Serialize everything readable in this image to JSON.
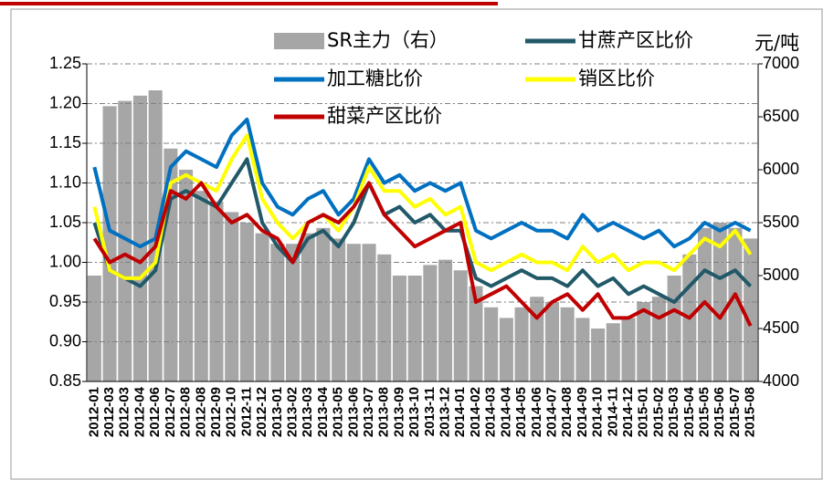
{
  "chart_data": {
    "type": "line",
    "y2_unit_label": "元/吨",
    "categories": [
      "2012-01",
      "2012-03",
      "2012-03",
      "2012-04",
      "2012-06",
      "2012-07",
      "2012-08",
      "2012-08",
      "2012-09",
      "2012-10",
      "2012-11",
      "2012-12",
      "2013-01",
      "2013-02",
      "2013-03",
      "2013-04",
      "2013-05",
      "2013-06",
      "2013-07",
      "2013-08",
      "2013-09",
      "2013-10",
      "2013-11",
      "2013-12",
      "2014-01",
      "2014-02",
      "2014-03",
      "2014-04",
      "2014-05",
      "2014-06",
      "2014-07",
      "2014-08",
      "2014-09",
      "2014-10",
      "2014-11",
      "2014-12",
      "2015-01",
      "2015-02",
      "2015-03",
      "2015-04",
      "2015-05",
      "2015-06",
      "2015-07",
      "2015-08"
    ],
    "series": [
      {
        "name": "SR主力（右）",
        "color": "#a6a6a6",
        "type": "bar",
        "axis": "y2",
        "values": [
          5000,
          6600,
          6650,
          6700,
          6750,
          6200,
          6000,
          5800,
          5700,
          5600,
          5500,
          5400,
          5300,
          5300,
          5400,
          5450,
          5350,
          5300,
          5300,
          5200,
          5000,
          5000,
          5100,
          5150,
          5050,
          4900,
          4700,
          4600,
          4700,
          4800,
          4750,
          4700,
          4600,
          4500,
          4550,
          4600,
          4750,
          4800,
          5000,
          5200,
          5450,
          5500,
          5450,
          5350
        ]
      },
      {
        "name": "甘蔗产区比价",
        "color": "#215968",
        "type": "line",
        "values": [
          1.05,
          0.99,
          0.98,
          0.97,
          0.99,
          1.08,
          1.09,
          1.08,
          1.07,
          1.1,
          1.13,
          1.05,
          1.02,
          1.0,
          1.03,
          1.04,
          1.02,
          1.05,
          1.1,
          1.06,
          1.07,
          1.05,
          1.06,
          1.04,
          1.04,
          0.98,
          0.97,
          0.98,
          0.99,
          0.98,
          0.98,
          0.97,
          0.99,
          0.97,
          0.98,
          0.96,
          0.97,
          0.96,
          0.95,
          0.97,
          0.99,
          0.98,
          0.99,
          0.97
        ]
      },
      {
        "name": "加工糖比价",
        "color": "#0070c0",
        "type": "line",
        "values": [
          1.12,
          1.04,
          1.03,
          1.02,
          1.03,
          1.12,
          1.14,
          1.13,
          1.12,
          1.16,
          1.18,
          1.1,
          1.07,
          1.06,
          1.08,
          1.09,
          1.06,
          1.08,
          1.13,
          1.1,
          1.11,
          1.09,
          1.1,
          1.09,
          1.1,
          1.04,
          1.03,
          1.04,
          1.05,
          1.04,
          1.04,
          1.03,
          1.06,
          1.04,
          1.05,
          1.04,
          1.03,
          1.04,
          1.02,
          1.03,
          1.05,
          1.04,
          1.05,
          1.04
        ]
      },
      {
        "name": "销区比价",
        "color": "#ffff00",
        "type": "line",
        "values": [
          1.07,
          0.99,
          0.98,
          0.98,
          1.0,
          1.1,
          1.11,
          1.1,
          1.09,
          1.13,
          1.16,
          1.08,
          1.05,
          1.03,
          1.05,
          1.06,
          1.04,
          1.07,
          1.12,
          1.09,
          1.09,
          1.07,
          1.08,
          1.06,
          1.07,
          1.0,
          0.99,
          1.0,
          1.01,
          1.0,
          1.0,
          0.99,
          1.02,
          1.0,
          1.01,
          0.99,
          1.0,
          1.0,
          0.99,
          1.01,
          1.03,
          1.02,
          1.04,
          1.01
        ]
      },
      {
        "name": "甜菜产区比价",
        "color": "#c00000",
        "type": "line",
        "values": [
          1.03,
          1.0,
          1.01,
          1.0,
          1.02,
          1.09,
          1.08,
          1.1,
          1.07,
          1.05,
          1.06,
          1.04,
          1.03,
          1.0,
          1.05,
          1.06,
          1.05,
          1.07,
          1.1,
          1.06,
          1.04,
          1.02,
          1.03,
          1.04,
          1.05,
          0.95,
          0.96,
          0.97,
          0.95,
          0.93,
          0.95,
          0.96,
          0.94,
          0.96,
          0.93,
          0.93,
          0.94,
          0.93,
          0.94,
          0.93,
          0.95,
          0.93,
          0.96,
          0.92
        ]
      }
    ],
    "ylim": [
      0.85,
      1.25
    ],
    "yticks": [
      0.85,
      {
        "value": 0.9,
        "label": "0.90"
      },
      0.95,
      {
        "value": 1.0,
        "label": "1.00"
      },
      1.05,
      {
        "value": 1.1,
        "label": "1.10"
      },
      1.15,
      {
        "value": 1.2,
        "label": "1.20"
      },
      1.25
    ],
    "y2lim": [
      4000,
      7000
    ],
    "y2ticks": [
      4000,
      4500,
      5000,
      5500,
      6000,
      6500,
      7000
    ],
    "grid": true
  }
}
